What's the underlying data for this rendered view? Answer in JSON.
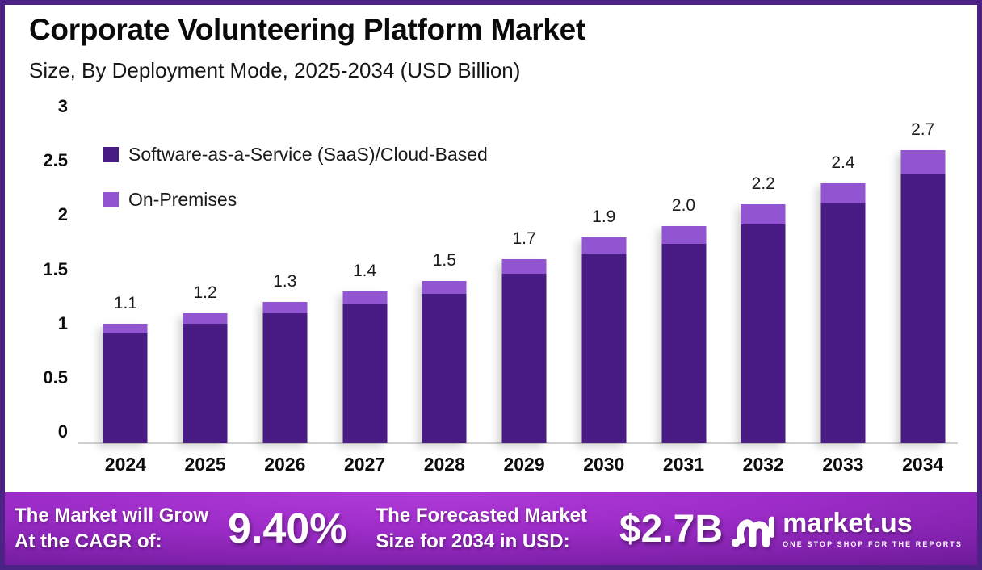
{
  "frame": {
    "border_color": "#4C2385",
    "background": "#ffffff"
  },
  "header": {
    "title": "Corporate Volunteering Platform Market",
    "subtitle": "Size, By Deployment Mode, 2025-2034 (USD Billion)"
  },
  "chart_data": {
    "type": "bar",
    "stacked": true,
    "title": "Corporate Volunteering Platform Market Size, By Deployment Mode, 2025-2034 (USD Billion)",
    "categories": [
      "2024",
      "2025",
      "2026",
      "2027",
      "2028",
      "2029",
      "2030",
      "2031",
      "2032",
      "2033",
      "2034"
    ],
    "series": [
      {
        "name": "Software-as-a-Service (SaaS)/Cloud-Based",
        "color": "#481B85",
        "values": [
          1.01,
          1.1,
          1.2,
          1.29,
          1.38,
          1.56,
          1.75,
          1.84,
          2.02,
          2.21,
          2.48
        ]
      },
      {
        "name": "On-Premises",
        "color": "#9155D2",
        "values": [
          0.09,
          0.1,
          0.1,
          0.11,
          0.12,
          0.14,
          0.15,
          0.16,
          0.18,
          0.19,
          0.22
        ]
      }
    ],
    "totals": [
      1.1,
      1.2,
      1.3,
      1.4,
      1.5,
      1.7,
      1.9,
      2.0,
      2.2,
      2.4,
      2.7
    ],
    "total_labels": [
      "1.1",
      "1.2",
      "1.3",
      "1.4",
      "1.5",
      "1.7",
      "1.9",
      "2.0",
      "2.2",
      "2.4",
      "2.7"
    ],
    "xlabel": "",
    "ylabel": "",
    "ylim": [
      0,
      3
    ],
    "yticks": [
      0,
      0.5,
      1,
      1.5,
      2,
      2.5,
      3
    ],
    "ytick_labels": [
      "0",
      "0.5",
      "1",
      "1.5",
      "2",
      "2.5",
      "3"
    ],
    "grid": false,
    "legend_position": "upper-left-inside",
    "axis_line_color": "#cfcfcf"
  },
  "banner": {
    "cagr_label_lines": [
      "The Market will Grow",
      "At the CAGR of:"
    ],
    "cagr_value": "9.40%",
    "forecast_label_lines": [
      "The Forecasted Market",
      "Size for 2034 in USD:"
    ],
    "forecast_value": "$2.7B",
    "logo_text": "market.us",
    "logo_tagline": "ONE STOP SHOP FOR THE REPORTS",
    "colors": {
      "gradient_bright": "#b13ad8",
      "gradient_mid": "#7b1fa6",
      "gradient_dark": "#4f1277",
      "text": "#ffffff"
    }
  }
}
